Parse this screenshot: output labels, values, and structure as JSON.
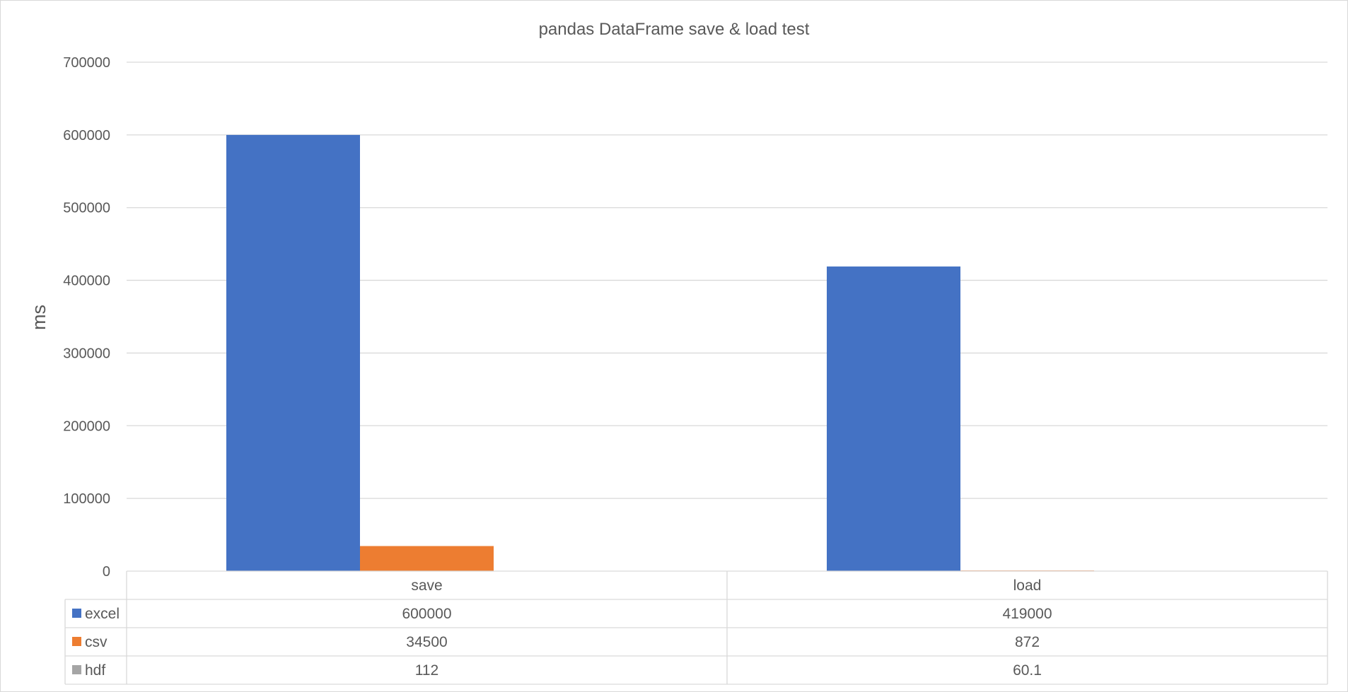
{
  "chart_data": {
    "type": "bar",
    "title": "pandas DataFrame save & load test",
    "xlabel": "",
    "ylabel": "ms",
    "ylim": [
      0,
      700000
    ],
    "yticks": [
      0,
      100000,
      200000,
      300000,
      400000,
      500000,
      600000,
      700000
    ],
    "ytick_labels": [
      "0",
      "100000",
      "200000",
      "300000",
      "400000",
      "500000",
      "600000",
      "700000"
    ],
    "grid": true,
    "legend": "data-table",
    "categories": [
      "save",
      "load"
    ],
    "series": [
      {
        "name": "excel",
        "color": "#4472C4",
        "values": [
          600000,
          419000
        ],
        "labels": [
          "600000",
          "419000"
        ]
      },
      {
        "name": "csv",
        "color": "#ED7D31",
        "values": [
          34500,
          872
        ],
        "labels": [
          "34500",
          "872"
        ]
      },
      {
        "name": "hdf",
        "color": "#A5A5A5",
        "values": [
          112,
          60.1
        ],
        "labels": [
          "112",
          "60.1"
        ]
      }
    ]
  }
}
